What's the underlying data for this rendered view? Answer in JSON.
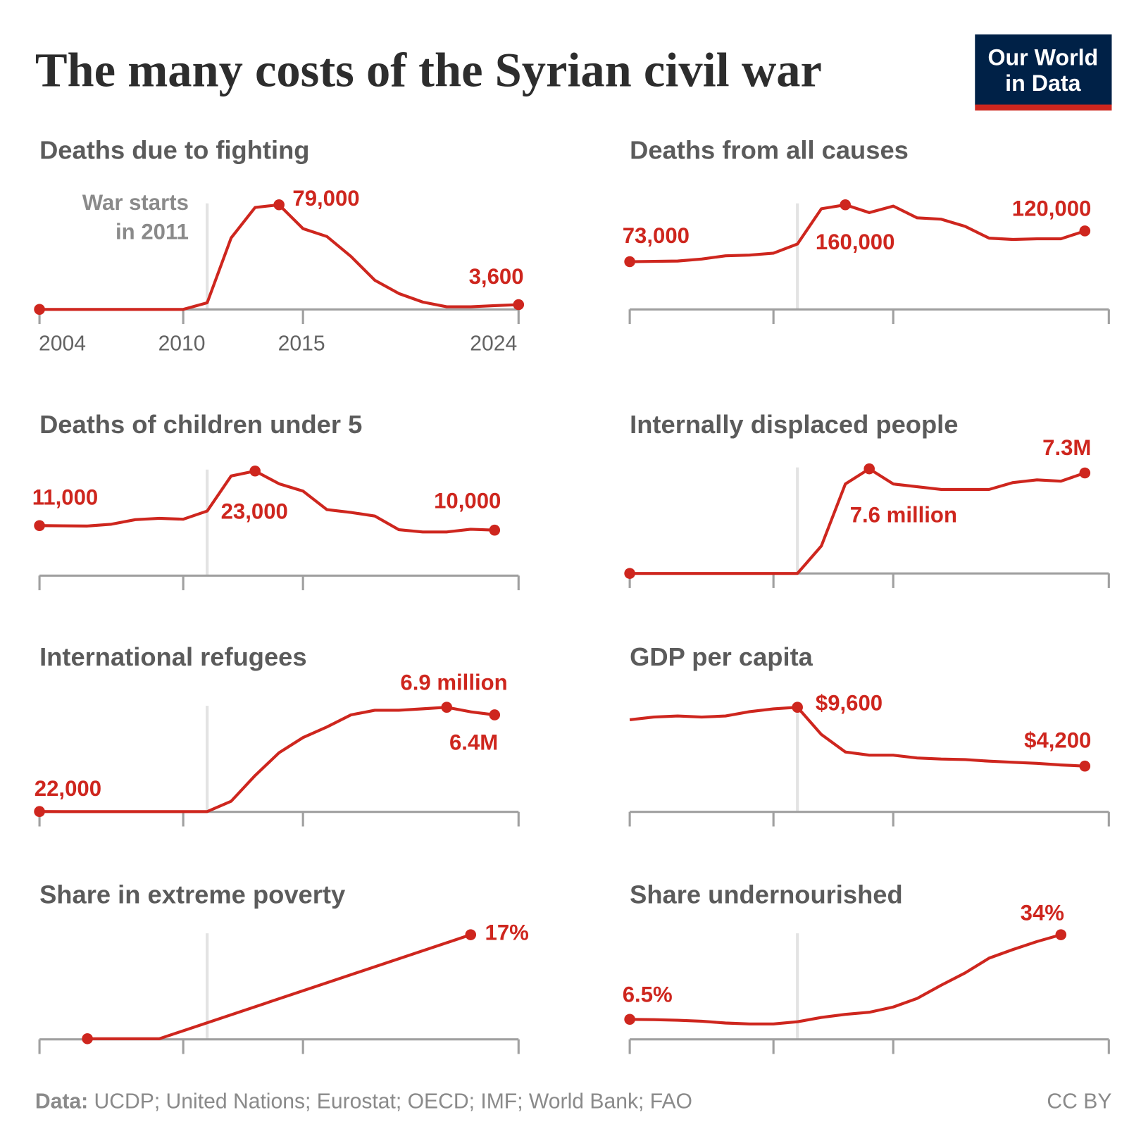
{
  "title": "The many costs of the Syrian civil war",
  "logo": {
    "line1": "Our World",
    "line2": "in Data",
    "bg": "#002147",
    "accent": "#ce261e"
  },
  "footer": {
    "data_label": "Data:",
    "sources": " UCDP; United Nations; Eurostat; OECD; IMF; World Bank; FAO",
    "license": "CC BY"
  },
  "colors": {
    "line": "#ce261e",
    "axis": "#a0a0a0",
    "war_line": "#e3e3e3"
  },
  "chart_data": [
    {
      "type": "line",
      "title": "Deaths due to fighting",
      "xlim": [
        2004,
        2024
      ],
      "ylim": [
        0,
        79000
      ],
      "x_ticks": [
        "2004",
        "2010",
        "2015",
        "2024"
      ],
      "annotation": {
        "line1": "War starts",
        "line2": "in 2011",
        "year": 2011
      },
      "x": [
        2004,
        2005,
        2006,
        2007,
        2008,
        2009,
        2010,
        2011,
        2012,
        2013,
        2014,
        2015,
        2016,
        2017,
        2018,
        2019,
        2020,
        2021,
        2022,
        2023,
        2024
      ],
      "y": [
        0,
        0,
        0,
        0,
        0,
        0,
        0,
        5000,
        54000,
        77000,
        79000,
        61000,
        55000,
        40000,
        22000,
        12000,
        5500,
        2000,
        2000,
        2800,
        3600
      ],
      "labels": [
        "79,000",
        "3,600"
      ]
    },
    {
      "type": "line",
      "title": "Deaths from all causes",
      "xlim": [
        2004,
        2024
      ],
      "ylim": [
        0,
        160000
      ],
      "x": [
        2004,
        2005,
        2006,
        2007,
        2008,
        2009,
        2010,
        2011,
        2012,
        2013,
        2014,
        2015,
        2016,
        2017,
        2018,
        2019,
        2020,
        2021,
        2022,
        2023
      ],
      "y": [
        73000,
        73500,
        74000,
        77000,
        82000,
        83000,
        86000,
        100000,
        154000,
        160000,
        148000,
        158000,
        140000,
        138000,
        127000,
        109000,
        107000,
        108000,
        108000,
        120000
      ],
      "labels": [
        "73,000",
        "160,000",
        "120,000"
      ]
    },
    {
      "type": "line",
      "title": "Deaths of children under 5",
      "xlim": [
        2004,
        2024
      ],
      "ylim": [
        0,
        23000
      ],
      "x": [
        2004,
        2005,
        2006,
        2007,
        2008,
        2009,
        2010,
        2011,
        2012,
        2013,
        2014,
        2015,
        2016,
        2017,
        2018,
        2019,
        2020,
        2021,
        2022,
        2023
      ],
      "y": [
        11000,
        10950,
        10900,
        11300,
        12300,
        12600,
        12400,
        14200,
        21900,
        23000,
        20200,
        18600,
        14500,
        13900,
        13100,
        10100,
        9600,
        9600,
        10200,
        10000
      ],
      "labels": [
        "11,000",
        "23,000",
        "10,000"
      ]
    },
    {
      "type": "line",
      "title": "Internally displaced people",
      "xlim": [
        2004,
        2024
      ],
      "ylim": [
        0,
        7.6
      ],
      "x": [
        2004,
        2005,
        2006,
        2007,
        2008,
        2009,
        2010,
        2011,
        2012,
        2013,
        2014,
        2015,
        2016,
        2017,
        2018,
        2019,
        2020,
        2021,
        2022,
        2023
      ],
      "y": [
        0,
        0,
        0,
        0,
        0,
        0,
        0,
        0,
        2.0,
        6.5,
        7.6,
        6.5,
        6.3,
        6.1,
        6.1,
        6.1,
        6.6,
        6.8,
        6.7,
        7.3
      ],
      "labels": [
        "7.6 million",
        "7.3M"
      ]
    },
    {
      "type": "line",
      "title": "International refugees",
      "xlim": [
        2004,
        2024
      ],
      "ylim": [
        0,
        6.9
      ],
      "x": [
        2004,
        2005,
        2006,
        2007,
        2008,
        2009,
        2010,
        2011,
        2012,
        2013,
        2014,
        2015,
        2016,
        2017,
        2018,
        2019,
        2020,
        2021,
        2022,
        2023
      ],
      "y": [
        0.022,
        0.02,
        0.02,
        0.02,
        0.02,
        0.02,
        0.02,
        0.02,
        0.7,
        2.4,
        3.9,
        4.9,
        5.6,
        6.4,
        6.7,
        6.7,
        6.8,
        6.9,
        6.6,
        6.4
      ],
      "labels": [
        "6.9 million",
        "6.4M",
        "22,000"
      ]
    },
    {
      "type": "line",
      "title": "GDP per capita",
      "xlim": [
        2004,
        2024
      ],
      "ylim": [
        0,
        9600
      ],
      "x": [
        2004,
        2005,
        2006,
        2007,
        2008,
        2009,
        2010,
        2011,
        2012,
        2013,
        2014,
        2015,
        2016,
        2017,
        2018,
        2019,
        2020,
        2021,
        2022,
        2023
      ],
      "y": [
        8450,
        8700,
        8800,
        8700,
        8800,
        9200,
        9450,
        9600,
        7100,
        5500,
        5200,
        5200,
        4950,
        4850,
        4800,
        4650,
        4550,
        4450,
        4300,
        4200
      ],
      "labels": [
        "$9,600",
        "$4,200"
      ]
    },
    {
      "type": "line",
      "title": "Share in extreme poverty",
      "xlim": [
        2004,
        2024
      ],
      "ylim": [
        0,
        17
      ],
      "x": [
        2006,
        2009,
        2022
      ],
      "y": [
        0.1,
        0.1,
        17
      ],
      "labels": [
        "17%"
      ]
    },
    {
      "type": "line",
      "title": "Share undernourished",
      "xlim": [
        2004,
        2024
      ],
      "ylim": [
        0,
        34
      ],
      "x": [
        2004,
        2005,
        2006,
        2007,
        2008,
        2009,
        2010,
        2011,
        2012,
        2013,
        2014,
        2015,
        2016,
        2017,
        2018,
        2019,
        2020,
        2021,
        2022
      ],
      "y": [
        6.5,
        6.4,
        6.2,
        5.9,
        5.3,
        5.0,
        5.0,
        5.7,
        7.1,
        8.1,
        8.8,
        10.5,
        13.3,
        17.6,
        21.6,
        26.4,
        29.2,
        31.8,
        34
      ],
      "labels": [
        "34%",
        "6.5%"
      ]
    }
  ]
}
